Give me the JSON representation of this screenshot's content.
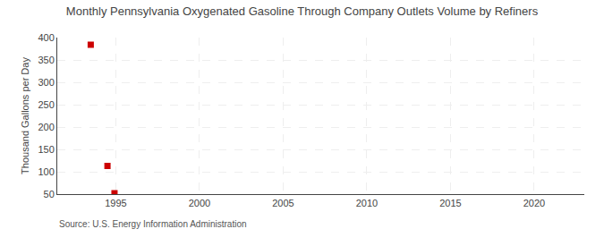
{
  "chart_data": {
    "type": "scatter",
    "title": "Monthly Pennsylvania Oxygenated Gasoline Through Company Outlets Volume by Refiners",
    "ylabel": "Thousand Gallons per Day",
    "annotations": [
      "Source: U.S. Energy Information Administration"
    ],
    "x": [
      1993.5,
      1994.5,
      1994.92
    ],
    "values": [
      384,
      113,
      52
    ],
    "color": "#cc0000",
    "marker": "square",
    "xlim": [
      1991.5,
      2023
    ],
    "ylim": [
      50,
      400
    ],
    "xticks": [
      1995,
      2000,
      2005,
      2010,
      2015,
      2020
    ],
    "yticks": [
      50,
      100,
      150,
      200,
      250,
      300,
      350,
      400
    ],
    "grid": true
  }
}
